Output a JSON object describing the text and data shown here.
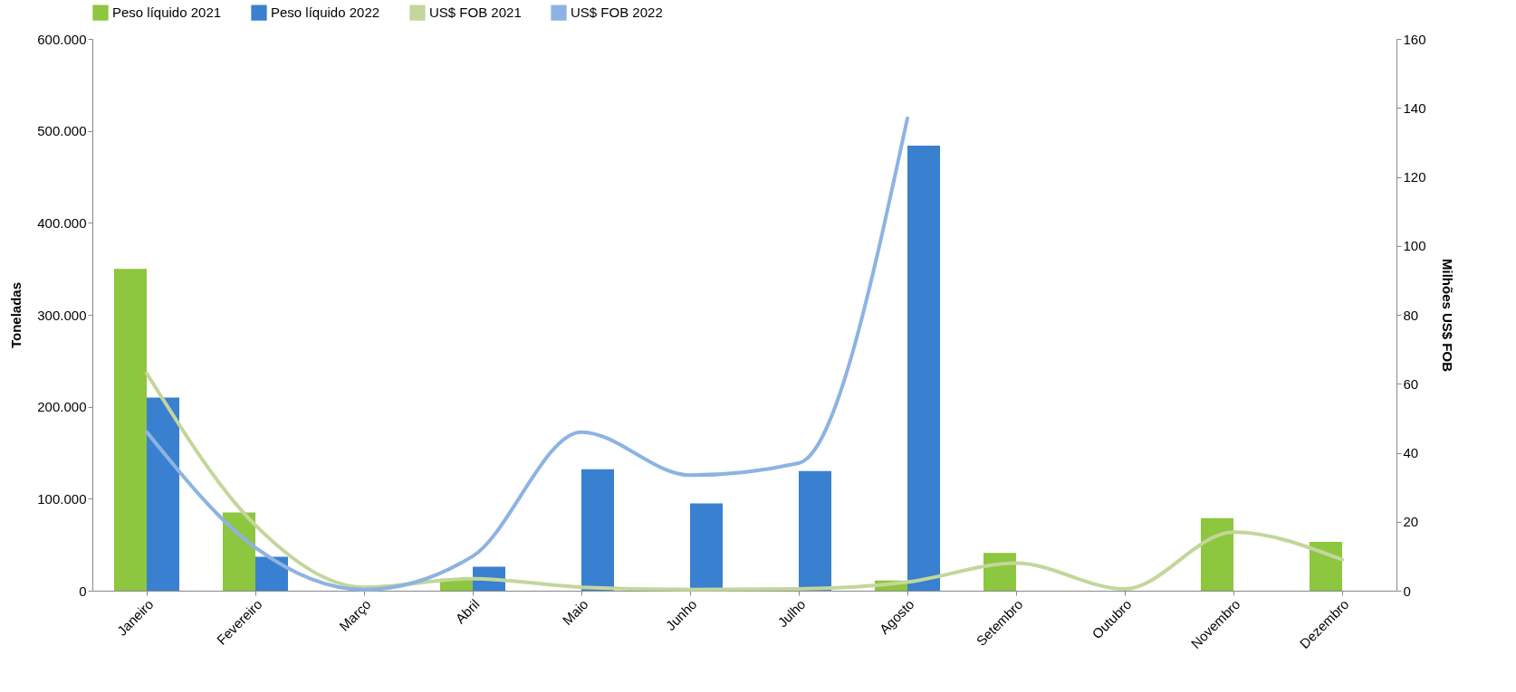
{
  "chart_data": {
    "type": "bar",
    "ylabel": "Toneladas",
    "y2label": "Milhões US$ FOB",
    "categories": [
      "Janeiro",
      "Fevereiro",
      "Março",
      "Abril",
      "Maio",
      "Junho",
      "Julho",
      "Agosto",
      "Setembro",
      "Outubro",
      "Novembro",
      "Dezembro"
    ],
    "series": [
      {
        "name": "Peso líquido 2021",
        "color": "#8dc63f",
        "values": [
          350000,
          85000,
          0,
          13000,
          0,
          0,
          0,
          11000,
          41000,
          0,
          79000,
          53000
        ]
      },
      {
        "name": "Peso líquido 2022",
        "color": "#3a80d0",
        "values": [
          210000,
          37000,
          0,
          26000,
          132000,
          95000,
          130000,
          484000,
          null,
          null,
          null,
          null
        ]
      },
      {
        "name": "US$ FOB 2021",
        "type": "line",
        "axis": "y2",
        "color": "#c3d69b",
        "values": [
          63,
          19,
          1,
          3.5,
          1,
          0.3,
          0.5,
          2.5,
          8,
          0.5,
          17,
          9
        ]
      },
      {
        "name": "US$ FOB 2022",
        "type": "line",
        "axis": "y2",
        "color": "#8db3e2",
        "values": [
          46,
          12.5,
          0.3,
          10,
          46,
          33.5,
          37,
          137,
          null,
          null,
          null,
          null
        ]
      }
    ],
    "ylim": [
      0,
      600000
    ],
    "yticks": [
      0,
      {
        "value": 100000,
        "label": "100.000"
      },
      {
        "value": 200000,
        "label": "200.000"
      },
      {
        "value": 300000,
        "label": "300.000"
      },
      {
        "value": 400000,
        "label": "400.000"
      },
      {
        "value": 500000,
        "label": "500.000"
      },
      {
        "value": 600000,
        "label": "600.000"
      }
    ],
    "y2lim": [
      0,
      160
    ],
    "y2ticks": [
      0,
      20,
      40,
      60,
      80,
      100,
      120,
      140,
      160
    ],
    "legend": "top",
    "grid": false
  }
}
